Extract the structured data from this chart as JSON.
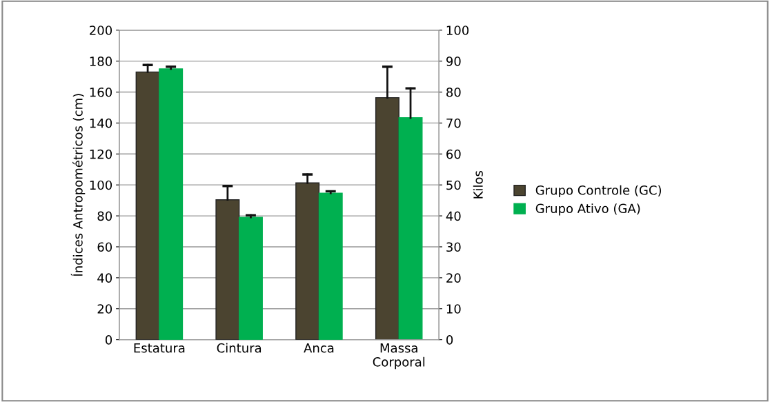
{
  "chart_data": {
    "type": "bar",
    "categories": [
      "Estatura",
      "Cintura",
      "Anca",
      "Massa\nCorporal"
    ],
    "ylabel": "Índices Antropométricos (cm)",
    "y2label": "Kilos",
    "series": [
      {
        "name": "Grupo Controle (GC)",
        "color": "#4b4430",
        "values": [
          173,
          90.4,
          101.3,
          null
        ],
        "errors": [
          [
            173,
            177.5
          ],
          [
            90.4,
            99.3
          ],
          [
            101.3,
            106.8
          ],
          null
        ]
      },
      {
        "name": "Grupo Ativo (GA)",
        "color": "#00b050",
        "values": [
          175,
          79.1,
          94.7,
          null
        ],
        "errors": [
          [
            175,
            176.4
          ],
          [
            79.1,
            80.4
          ],
          [
            94.7,
            95.9
          ],
          null
        ]
      },
      {
        "color": "#4b4430",
        "axis": "y2",
        "values": [
          null,
          null,
          null,
          78.2
        ],
        "errors": [
          null,
          null,
          null,
          [
            78.2,
            88.2
          ]
        ]
      },
      {
        "color": "#00b050",
        "axis": "y2",
        "values": [
          null,
          null,
          null,
          71.7
        ],
        "errors": [
          null,
          null,
          null,
          [
            71.7,
            81.2
          ]
        ]
      }
    ],
    "ylim": [
      0,
      200
    ],
    "yticks": [
      0,
      20,
      40,
      60,
      80,
      100,
      120,
      140,
      160,
      180,
      200
    ],
    "y2lim": [
      0,
      100
    ],
    "y2ticks": [
      0,
      10,
      20,
      30,
      40,
      50,
      60,
      70,
      80,
      90,
      100
    ],
    "grid": "y",
    "legend": "right"
  }
}
